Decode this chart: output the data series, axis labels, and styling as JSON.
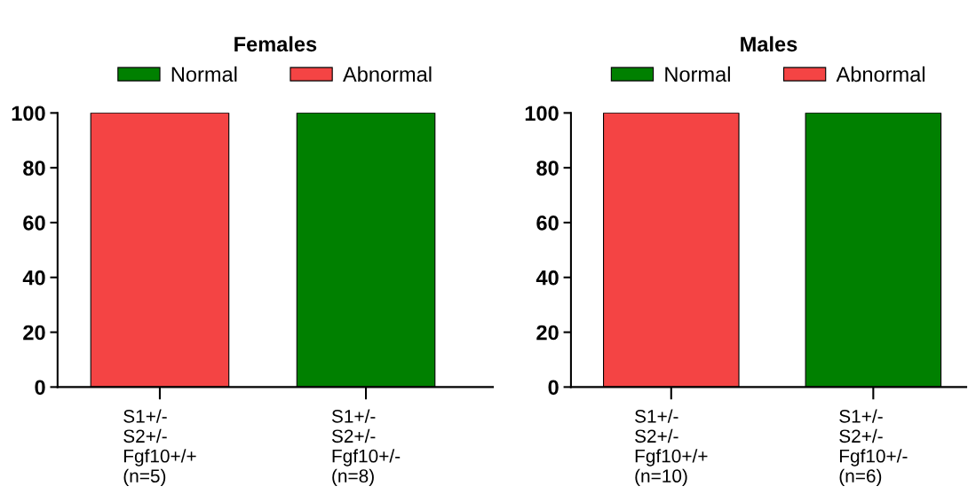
{
  "chart_data": [
    {
      "type": "bar",
      "title": "Females",
      "stacked": true,
      "legend": "top",
      "grid": false,
      "categories": [
        "S1+/-\nS2+/-\nFgf10+/+\n(n=5)",
        "S1+/-\nS2+/-\nFgf10+/-\n(n=8)"
      ],
      "series": [
        {
          "name": "Normal",
          "color": "#008000",
          "values": [
            null,
            100
          ]
        },
        {
          "name": "Abnormal",
          "color": "#f44444",
          "values": [
            100,
            null
          ]
        }
      ],
      "ylim": [
        0,
        100
      ],
      "yticks": [
        0,
        20,
        40,
        60,
        80,
        100
      ]
    },
    {
      "type": "bar",
      "title": "Males",
      "stacked": true,
      "legend": "top",
      "grid": false,
      "categories": [
        "S1+/-\nS2+/-\nFgf10+/+\n(n=10)",
        "S1+/-\nS2+/-\nFgf10+/-\n(n=6)"
      ],
      "series": [
        {
          "name": "Normal",
          "color": "#008000",
          "values": [
            null,
            100
          ]
        },
        {
          "name": "Abnormal",
          "color": "#f44444",
          "values": [
            100,
            null
          ]
        }
      ],
      "ylim": [
        0,
        100
      ],
      "yticks": [
        0,
        20,
        40,
        60,
        80,
        100
      ]
    }
  ]
}
